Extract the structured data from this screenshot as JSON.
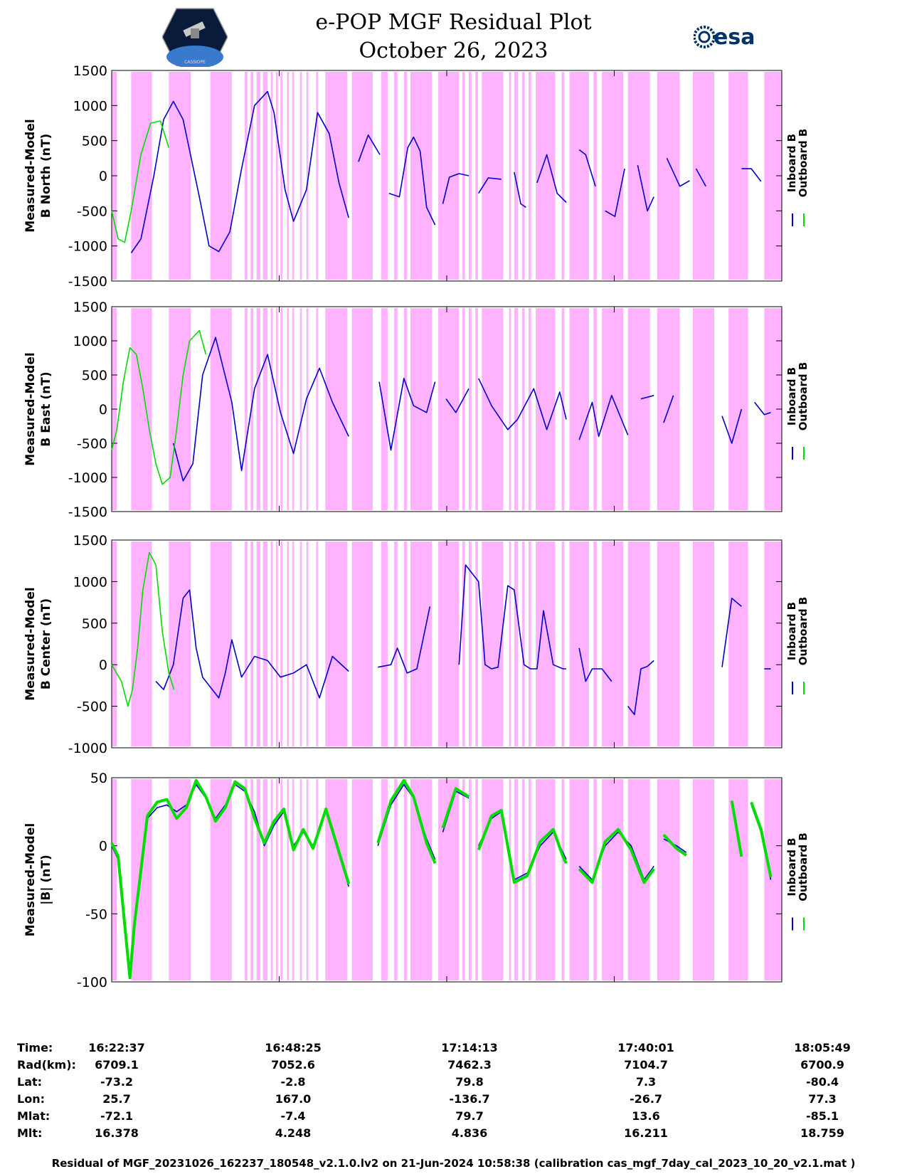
{
  "header": {
    "title": "e-POP MGF Residual Plot",
    "date": "October 26, 2023",
    "left_logo_text": "CASSIOPE",
    "right_logo_text": "esa"
  },
  "colors": {
    "inboard": "#0000cc",
    "outboard": "#00dd00",
    "shade": "#ffb3ff"
  },
  "chart_data": [
    {
      "type": "line",
      "title": "",
      "ylabel": "Measured-Model B North (nT)",
      "ylim": [
        -1500,
        1500
      ],
      "yticks": [
        -1500,
        -1000,
        -500,
        0,
        500,
        1000,
        1500
      ],
      "x_unit": "minutes since 16:22:37",
      "xlim": [
        0,
        103.2
      ],
      "series": [
        {
          "name": "Inboard B",
          "legend": "Inboard B",
          "color": "#0000cc",
          "x": [
            3.0,
            4.5,
            6.5,
            8.0,
            9.5,
            11.0,
            13.5,
            15.0,
            16.5,
            18.2,
            20.0,
            22.0,
            24.0,
            25.0,
            26.7,
            28.0,
            30.0,
            31.7,
            33.5,
            35.0,
            36.5,
            38.0,
            39.5,
            41.3,
            42.7,
            44.3,
            45.6,
            46.5,
            47.5,
            48.5,
            49.8,
            51.0,
            52.0,
            53.5,
            55.0,
            56.5,
            58.0,
            60.0,
            62.0,
            63.0,
            63.8,
            65.5,
            67.0,
            68.6,
            70.0,
            72.0,
            73.0,
            74.5,
            76.0,
            77.5,
            79.0,
            81.0,
            82.5,
            83.5,
            85.5,
            87.5,
            89.0,
            90.0,
            91.5,
            94.0,
            95.5,
            97.0,
            98.5,
            100.0
          ],
          "y": [
            -1100,
            -900,
            0,
            800,
            1060,
            800,
            -300,
            -1000,
            -1080,
            -800,
            100,
            1000,
            1200,
            900,
            -200,
            -650,
            -200,
            900,
            600,
            -100,
            -600,
            200,
            580,
            300,
            -250,
            -300,
            400,
            550,
            350,
            -450,
            -700,
            -400,
            -20,
            30,
            0,
            -250,
            -30,
            -50,
            50,
            -400,
            -450,
            -100,
            300,
            -250,
            -380,
            370,
            300,
            -150,
            -500,
            -580,
            100,
            150,
            -500,
            -300,
            250,
            -150,
            -70,
            100,
            -150,
            -100,
            200,
            100,
            100,
            -80
          ],
          "gaps_after": [
            36.5,
            41.3,
            49.8,
            55.0,
            60.0,
            63.8,
            70.0,
            74.5,
            79.0,
            83.5,
            89.0,
            91.5,
            94.0,
            95.5
          ]
        },
        {
          "name": "Outboard B",
          "legend": "Outboard B",
          "color": "#00dd00",
          "x": [
            0.0,
            1.0,
            2.0,
            3.0,
            4.5,
            6.0,
            7.5,
            8.8
          ],
          "y": [
            -500,
            -900,
            -950,
            -500,
            300,
            750,
            780,
            400
          ]
        }
      ]
    },
    {
      "type": "line",
      "title": "",
      "ylabel": "Measured-Model B East (nT)",
      "ylim": [
        -1500,
        1500
      ],
      "yticks": [
        -1500,
        -1000,
        -500,
        0,
        500,
        1000,
        1500
      ],
      "x_unit": "minutes since 16:22:37",
      "xlim": [
        0,
        103.2
      ],
      "series": [
        {
          "name": "Inboard B",
          "legend": "Inboard B",
          "color": "#0000cc",
          "x": [
            9.5,
            11.0,
            12.5,
            14.0,
            16.0,
            18.5,
            20.0,
            22.0,
            24.0,
            26.0,
            28.0,
            30.0,
            32.0,
            34.0,
            36.5,
            41.2,
            43.0,
            45.0,
            46.5,
            48.5,
            49.8,
            51.5,
            53.0,
            55.0,
            56.5,
            58.5,
            61.0,
            62.5,
            65.0,
            67.0,
            69.0,
            70.0,
            72.0,
            74.0,
            75.0,
            77.0,
            79.5,
            81.5,
            83.5,
            85.0,
            86.5,
            88.5,
            91.0,
            92.0,
            94.0,
            95.5,
            97.0,
            99.0,
            100.5,
            101.5
          ],
          "y": [
            -500,
            -1050,
            -800,
            500,
            1050,
            100,
            -900,
            300,
            800,
            -50,
            -650,
            150,
            600,
            100,
            -400,
            400,
            -600,
            450,
            50,
            -50,
            400,
            150,
            -50,
            300,
            450,
            50,
            -300,
            -150,
            300,
            -300,
            250,
            -150,
            -450,
            100,
            -400,
            200,
            -380,
            150,
            200,
            -200,
            200,
            100,
            -100,
            150,
            -100,
            -500,
            0,
            100,
            -80,
            -50
          ],
          "gaps_after": [
            36.5,
            49.8,
            55.0,
            70.0,
            79.5,
            83.5,
            86.5,
            88.5,
            91.0,
            92.0,
            97.0
          ]
        },
        {
          "name": "Outboard B",
          "legend": "Outboard B",
          "color": "#00dd00",
          "x": [
            0.0,
            0.8,
            1.8,
            2.8,
            3.8,
            4.8,
            5.8,
            6.8,
            7.8,
            9.0,
            10.0,
            11.0,
            12.0,
            13.5,
            14.5
          ],
          "y": [
            -600,
            -300,
            400,
            900,
            800,
            300,
            -300,
            -800,
            -1100,
            -1000,
            -300,
            500,
            1000,
            1150,
            800
          ]
        }
      ]
    },
    {
      "type": "line",
      "title": "",
      "ylabel": "Measured-Model B Center (nT)",
      "ylim": [
        -1000,
        1500
      ],
      "yticks": [
        -1000,
        -500,
        0,
        500,
        1000,
        1500
      ],
      "x_unit": "minutes since 16:22:37",
      "xlim": [
        0,
        103.2
      ],
      "series": [
        {
          "name": "Inboard B",
          "legend": "Inboard B",
          "color": "#0000cc",
          "x": [
            6.8,
            8.0,
            9.5,
            11.0,
            12.0,
            13.0,
            14.0,
            15.5,
            16.5,
            17.5,
            18.5,
            20.0,
            22.0,
            24.0,
            26.0,
            28.0,
            30.0,
            32.0,
            34.0,
            36.5,
            41.0,
            43.0,
            44.0,
            45.5,
            47.0,
            49.0,
            51.0,
            53.5,
            54.5,
            56.5,
            57.5,
            58.5,
            59.5,
            61.0,
            62.0,
            63.5,
            64.5,
            65.5,
            66.5,
            68.0,
            69.5,
            70.0,
            72.0,
            73.0,
            74.0,
            75.5,
            77.0,
            79.5,
            80.5,
            81.5,
            82.5,
            83.5,
            85.5,
            88.5,
            92.0,
            94.0,
            95.5,
            97.0,
            99.0,
            100.5,
            101.5
          ],
          "y": [
            -200,
            -300,
            0,
            800,
            900,
            200,
            -150,
            -300,
            -400,
            -100,
            300,
            -150,
            100,
            50,
            -150,
            -100,
            0,
            -400,
            100,
            -80,
            -30,
            0,
            200,
            -100,
            -50,
            700,
            -50,
            0,
            1200,
            1000,
            0,
            -50,
            -30,
            950,
            900,
            0,
            -50,
            -50,
            650,
            0,
            -50,
            -50,
            200,
            -200,
            -50,
            -50,
            -200,
            -500,
            -600,
            -50,
            -20,
            50,
            -30,
            -50,
            -50,
            -30,
            800,
            700,
            0,
            -50,
            -50
          ],
          "gaps_after": [
            36.5,
            49.0,
            51.0,
            70.0,
            77.0,
            83.5,
            85.5,
            88.5,
            92.0,
            97.0,
            99.0
          ]
        },
        {
          "name": "Outboard B",
          "legend": "Outboard B",
          "color": "#00dd00",
          "x": [
            0.0,
            1.5,
            2.5,
            3.2,
            4.0,
            4.8,
            5.8,
            6.8,
            7.8,
            8.8,
            9.6
          ],
          "y": [
            0,
            -200,
            -500,
            -300,
            200,
            900,
            1350,
            1200,
            400,
            -100,
            -300
          ]
        }
      ]
    },
    {
      "type": "line",
      "title": "",
      "ylabel": "Measured-Model |B| (nT)",
      "ylim": [
        -100,
        50
      ],
      "yticks": [
        -100,
        -50,
        0,
        50
      ],
      "x_unit": "minutes since 16:22:37",
      "xlim": [
        0,
        103.2
      ],
      "series": [
        {
          "name": "Inboard B",
          "legend": "Inboard B",
          "color": "#0000cc",
          "x": [
            0.0,
            1.0,
            2.0,
            2.8,
            3.5,
            4.5,
            5.5,
            7.0,
            8.5,
            10.0,
            11.5,
            13.0,
            14.5,
            16.0,
            17.5,
            19.0,
            20.5,
            22.0,
            23.5,
            25.0,
            26.5,
            28.0,
            29.5,
            31.0,
            33.0,
            36.5,
            41.0,
            43.0,
            45.0,
            46.5,
            48.5,
            49.8,
            51.0,
            53.0,
            55.0,
            56.5,
            58.5,
            60.0,
            62.0,
            64.0,
            66.0,
            68.0,
            69.5,
            70.0,
            72.0,
            74.0,
            76.0,
            78.0,
            80.0,
            82.0,
            83.5,
            85.0,
            87.0,
            88.5,
            91.0,
            92.0,
            94.0,
            95.5,
            97.0,
            98.5,
            100.0,
            101.5
          ],
          "y": [
            0,
            -10,
            -60,
            -95,
            -60,
            -20,
            20,
            28,
            30,
            25,
            30,
            45,
            35,
            20,
            30,
            45,
            40,
            25,
            0,
            15,
            25,
            0,
            10,
            0,
            25,
            -30,
            0,
            30,
            45,
            35,
            5,
            -10,
            10,
            40,
            35,
            0,
            20,
            25,
            -25,
            -20,
            0,
            10,
            -5,
            -10,
            -15,
            -25,
            0,
            10,
            0,
            -25,
            -15,
            5,
            0,
            -5,
            25,
            -10,
            45,
            30,
            -5,
            30,
            10,
            -25
          ],
          "gaps_after": [
            36.5,
            49.8,
            55.0,
            70.0,
            83.5,
            88.5,
            91.0,
            92.0,
            94.0,
            97.0
          ]
        },
        {
          "name": "Outboard B",
          "legend": "Outboard B",
          "color": "#00dd00",
          "x": [
            0.0,
            1.0,
            2.0,
            2.8,
            3.5,
            4.5,
            5.5,
            7.0,
            8.5,
            10.0,
            11.5,
            13.0,
            14.5,
            16.0,
            17.5,
            19.0,
            20.5,
            22.0,
            23.5,
            25.0,
            26.5,
            28.0,
            29.5,
            31.0,
            33.0,
            36.5,
            41.0,
            43.0,
            45.0,
            46.5,
            48.5,
            49.8,
            51.0,
            53.0,
            55.0,
            56.5,
            58.5,
            60.0,
            62.0,
            64.0,
            66.0,
            68.0,
            69.5,
            70.0,
            72.0,
            74.0,
            76.0,
            78.0,
            80.0,
            82.0,
            83.5,
            85.0,
            87.0,
            88.5,
            91.0,
            92.0,
            94.0,
            95.5,
            97.0,
            98.5,
            100.0,
            101.5
          ],
          "y": [
            2,
            -8,
            -58,
            -97,
            -58,
            -18,
            22,
            32,
            34,
            20,
            28,
            48,
            36,
            18,
            28,
            47,
            42,
            20,
            2,
            18,
            27,
            -3,
            12,
            -2,
            27,
            -28,
            2,
            33,
            48,
            36,
            2,
            -13,
            13,
            42,
            36,
            -3,
            22,
            26,
            -27,
            -22,
            3,
            12,
            -8,
            -13,
            -17,
            -27,
            3,
            12,
            -3,
            -27,
            -17,
            8,
            -2,
            -7,
            27,
            -12,
            47,
            33,
            -8,
            32,
            12,
            -23
          ],
          "gaps_after": [
            36.5,
            49.8,
            55.0,
            70.0,
            83.5,
            88.5,
            91.0,
            92.0,
            94.0,
            97.0
          ]
        }
      ]
    }
  ],
  "shaded_intervals_min": [
    [
      0,
      0.8
    ],
    [
      3.0,
      6.2
    ],
    [
      8.8,
      12.2
    ],
    [
      15.2,
      18.5
    ],
    [
      20.5,
      20.9
    ],
    [
      21.4,
      21.8
    ],
    [
      22.3,
      22.9
    ],
    [
      23.3,
      24.0
    ],
    [
      24.5,
      24.8
    ],
    [
      25.3,
      25.6
    ],
    [
      26.0,
      26.3
    ],
    [
      27.0,
      27.3
    ],
    [
      27.8,
      28.1
    ],
    [
      29.0,
      29.3
    ],
    [
      30.0,
      30.3
    ],
    [
      31.5,
      31.8
    ],
    [
      32.9,
      36.3
    ],
    [
      37.0,
      40.2
    ],
    [
      41.5,
      42.5
    ],
    [
      43.5,
      44.0
    ],
    [
      45.0,
      45.5
    ],
    [
      46.0,
      49.3
    ],
    [
      50.3,
      53.5
    ],
    [
      54.0,
      54.4
    ],
    [
      55.0,
      55.4
    ],
    [
      56.0,
      56.4
    ],
    [
      57.0,
      60.3
    ],
    [
      61.2,
      61.5
    ],
    [
      62.0,
      62.6
    ],
    [
      63.2,
      63.6
    ],
    [
      64.2,
      64.6
    ],
    [
      65.3,
      68.3
    ],
    [
      69.3,
      69.7
    ],
    [
      70.5,
      73.5
    ],
    [
      74.2,
      74.7
    ],
    [
      75.5,
      78.8
    ],
    [
      79.5,
      82.9
    ],
    [
      84.0,
      87.5
    ],
    [
      89.5,
      92.8
    ],
    [
      95.0,
      98.0
    ],
    [
      100.5,
      103.2
    ]
  ],
  "info_table": {
    "labels": [
      "Time:",
      "Rad(km):",
      "Lat:",
      "Lon:",
      "Mlat:",
      "Mlt:"
    ],
    "columns": [
      [
        "16:22:37",
        "6709.1",
        "-73.2",
        "25.7",
        "-72.1",
        "16.378"
      ],
      [
        "16:48:25",
        "7052.6",
        "-2.8",
        "167.0",
        "-7.4",
        "4.248"
      ],
      [
        "17:14:13",
        "7462.3",
        "79.8",
        "-136.7",
        "79.7",
        "4.836"
      ],
      [
        "17:40:01",
        "7104.7",
        "7.3",
        "-26.7",
        "13.6",
        "16.211"
      ],
      [
        "18:05:49",
        "6700.9",
        "-80.4",
        "77.3",
        "-85.1",
        "18.759"
      ]
    ]
  },
  "footer": "Residual of MGF_20231026_162237_180548_v2.1.0.lv2 on 21-Jun-2024 10:58:38 (calibration cas_mgf_7day_cal_2023_10_20_v2.1.mat )"
}
